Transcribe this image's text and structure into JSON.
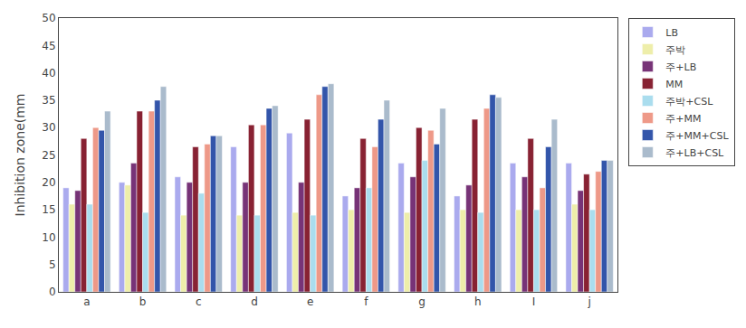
{
  "chart_data": {
    "type": "bar",
    "ylabel": "Inhibition zone(mm",
    "categories": [
      "a",
      "b",
      "c",
      "d",
      "e",
      "f",
      "g",
      "h",
      "I",
      "j"
    ],
    "series": [
      {
        "name": "LB",
        "color": "#aaaaee",
        "values": [
          19,
          20,
          21,
          26.5,
          29,
          17.5,
          23.5,
          17.5,
          23.5,
          23.5
        ]
      },
      {
        "name": "주박",
        "color": "#eeeeaa",
        "values": [
          16,
          19.5,
          14,
          14,
          14.5,
          15,
          14.5,
          15,
          15,
          16
        ]
      },
      {
        "name": "주+LB",
        "color": "#773377",
        "values": [
          18.5,
          23.5,
          20,
          20,
          20,
          19,
          21,
          19.5,
          21,
          18.5
        ]
      },
      {
        "name": "MM",
        "color": "#882233",
        "values": [
          28,
          33,
          26.5,
          30.5,
          31.5,
          28,
          30,
          31.5,
          28,
          21.5
        ]
      },
      {
        "name": "주박+CSL",
        "color": "#aaddee",
        "values": [
          16,
          14.5,
          18,
          14,
          14,
          19,
          24,
          14.5,
          15,
          15
        ]
      },
      {
        "name": "주+MM",
        "color": "#ee9988",
        "values": [
          30,
          33,
          27,
          30.5,
          36,
          26.5,
          29.5,
          33.5,
          19,
          22
        ]
      },
      {
        "name": "주+MM+CSL",
        "color": "#3355aa",
        "values": [
          29.5,
          35,
          28.5,
          33.5,
          37.5,
          31.5,
          27,
          36,
          26.5,
          24
        ]
      },
      {
        "name": "주+LB+CSL",
        "color": "#aabbcc",
        "values": [
          33,
          37.5,
          28.5,
          34,
          38,
          35,
          33.5,
          35.5,
          31.5,
          24
        ]
      }
    ],
    "ylim": [
      0,
      50
    ],
    "yticks": [
      0,
      5,
      10,
      15,
      20,
      25,
      30,
      35,
      40,
      45,
      50
    ],
    "grid": false,
    "legend": "upper right"
  }
}
